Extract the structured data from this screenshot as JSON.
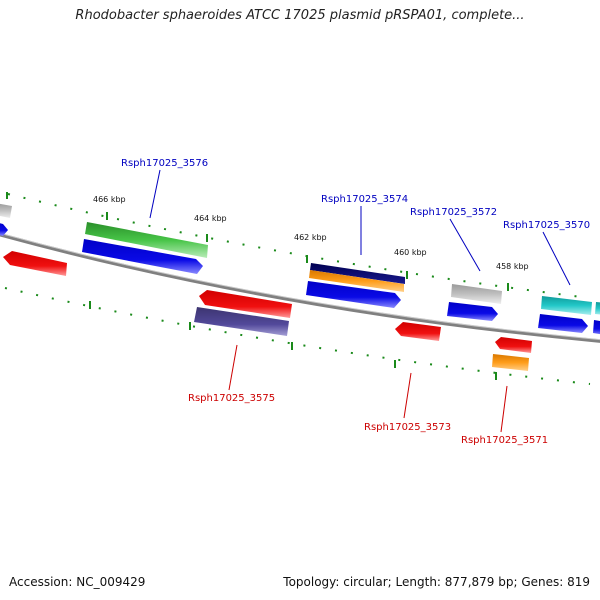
{
  "title": "Rhodobacter sphaeroides ATCC 17025 plasmid pRSPA01, complete...",
  "footer": {
    "accession": "Accession: NC_009429",
    "summary": "Topology: circular; Length: 877,879 bp; Genes: 819"
  },
  "scale_labels": [
    "466 kbp",
    "464 kbp",
    "462 kbp",
    "460 kbp",
    "458 kbp"
  ],
  "gene_labels": {
    "rsph3576": "Rsph17025_3576",
    "rsph3574": "Rsph17025_3574",
    "rsph3572": "Rsph17025_3572",
    "rsph3570": "Rsph17025_3570",
    "rsph3575": "Rsph17025_3575",
    "rsph3573": "Rsph17025_3573",
    "rsph3571": "Rsph17025_3571"
  },
  "colors": {
    "forward_label": "#0000c0",
    "reverse_label": "#cc0000",
    "backbone": "#808080",
    "tick": "#1a8a1a"
  }
}
